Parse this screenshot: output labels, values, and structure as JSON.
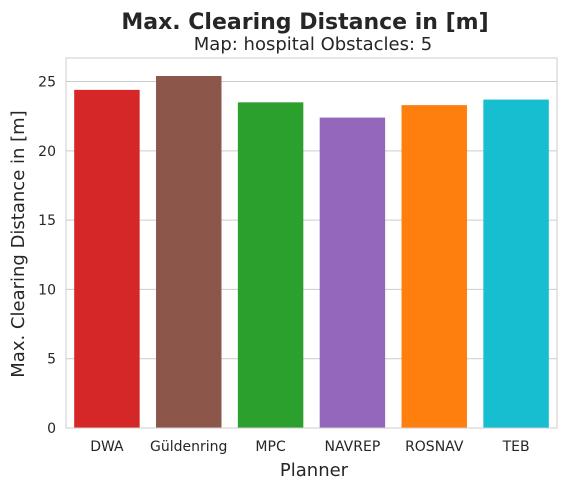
{
  "chart_data": {
    "type": "bar",
    "title": "Max. Clearing Distance in [m]",
    "subtitle": "Map: hospital Obstacles: 5",
    "xlabel": "Planner",
    "ylabel": "Max. Clearing Distance in [m]",
    "categories": [
      "DWA",
      "Güldenring",
      "MPC",
      "NAVREP",
      "ROSNAV",
      "TEB"
    ],
    "values": [
      24.4,
      25.4,
      23.5,
      22.4,
      23.3,
      23.7
    ],
    "colors": [
      "#d62728",
      "#8c564b",
      "#2ca02c",
      "#9467bd",
      "#ff7f0e",
      "#17becf"
    ],
    "ylim": [
      0,
      26.7
    ],
    "yticks": [
      0,
      5,
      10,
      15,
      20,
      25
    ],
    "grid": true,
    "legend": "none"
  }
}
